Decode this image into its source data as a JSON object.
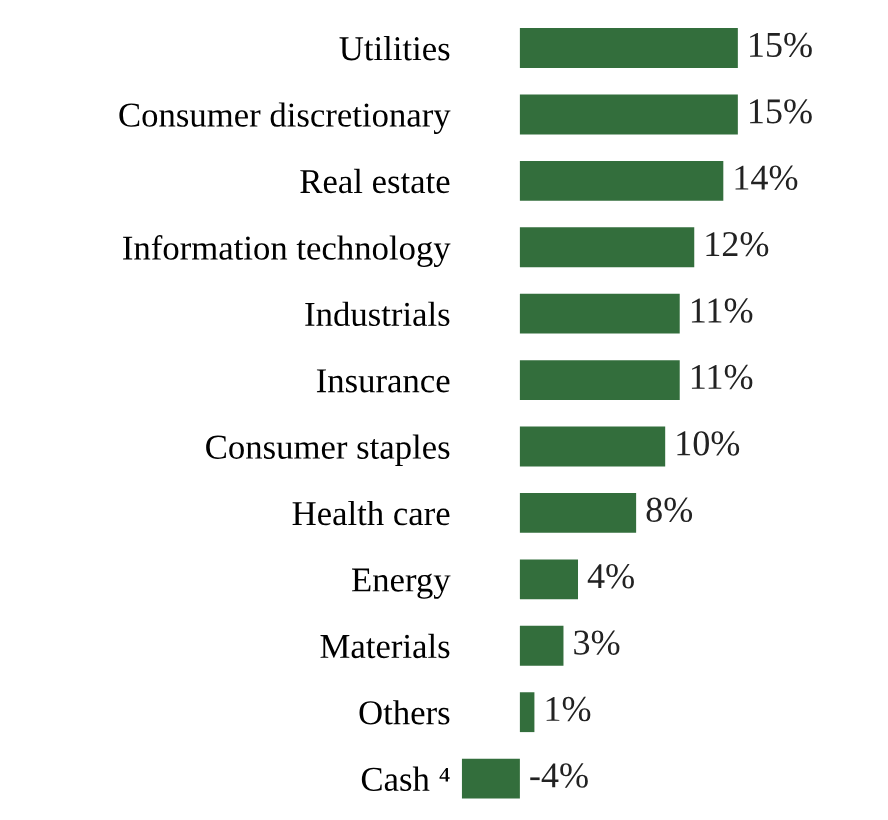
{
  "chart_data": {
    "type": "bar",
    "orientation": "horizontal",
    "categories": [
      "Utilities",
      "Consumer discretionary",
      "Real estate",
      "Information technology",
      "Industrials",
      "Insurance",
      "Consumer staples",
      "Health care",
      "Energy",
      "Materials",
      "Others",
      "Cash ⁴"
    ],
    "values": [
      15,
      15,
      14,
      12,
      11,
      11,
      10,
      8,
      4,
      3,
      1,
      -4
    ],
    "value_labels": [
      "15%",
      "15%",
      "14%",
      "12%",
      "11%",
      "11%",
      "10%",
      "8%",
      "4%",
      "3%",
      "1%",
      "-4%"
    ],
    "color": "#336e3c"
  }
}
